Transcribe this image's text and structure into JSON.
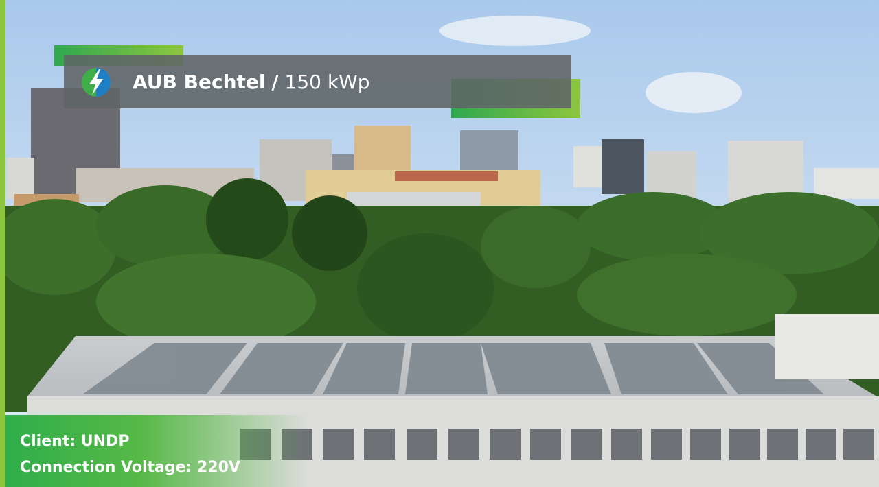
{
  "header": {
    "title": "AUB Bechtel",
    "separator": "/",
    "capacity": "150 kWp"
  },
  "footer": {
    "client": "Client: UNDP",
    "voltage": "Connection Voltage: 220V"
  }
}
